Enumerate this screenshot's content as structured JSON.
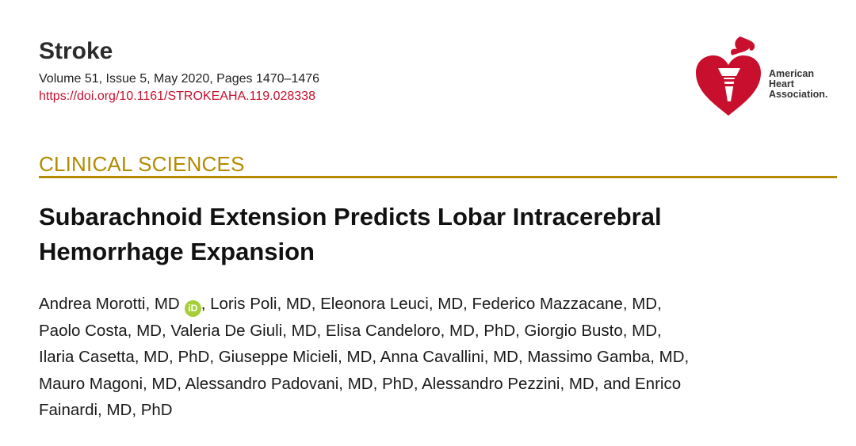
{
  "journal": {
    "title": "Stroke",
    "volume_line": "Volume 51, Issue 5, May 2020, Pages 1470–1476",
    "doi": "https://doi.org/10.1161/STROKEAHA.119.028338"
  },
  "logo": {
    "line1": "American",
    "line2": "Heart",
    "line3": "Association.",
    "icon": "heart-torch-icon",
    "color": "#c8102e"
  },
  "section": {
    "label": "CLINICAL SCIENCES",
    "color": "#b38a00"
  },
  "article": {
    "title_line1": "Subarachnoid Extension Predicts Lobar Intracerebral",
    "title_line2": "Hemorrhage Expansion"
  },
  "authors": {
    "first": "Andrea Morotti, MD",
    "orcid_glyph": "iD",
    "line1_rest": ", Loris Poli, MD, Eleonora Leuci, MD, Federico Mazzacane, MD,",
    "line2": "Paolo Costa, MD, Valeria De Giuli, MD, Elisa Candeloro, MD, PhD, Giorgio Busto, MD,",
    "line3": "Ilaria Casetta, MD, PhD, Giuseppe Micieli, MD, Anna Cavallini, MD, Massimo Gamba, MD,",
    "line4": "Mauro Magoni, MD, Alessandro Padovani, MD, PhD, Alessandro Pezzini, MD, and Enrico",
    "line5": "Fainardi, MD, PhD"
  }
}
